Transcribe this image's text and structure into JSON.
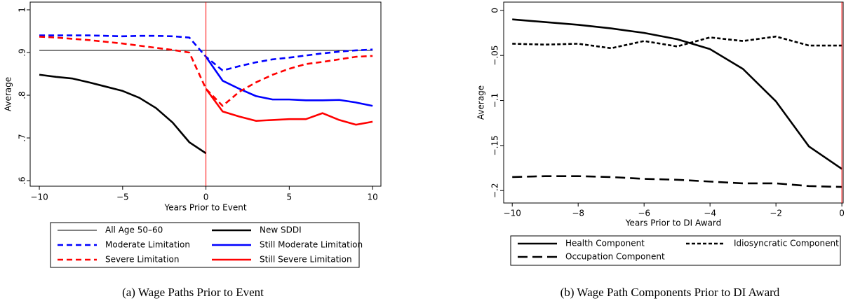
{
  "chart_data": [
    {
      "type": "line",
      "caption": "(a)  Wage Paths Prior to Event",
      "xlabel": "Years Prior to Event",
      "ylabel": "Average",
      "x": [
        -10,
        -9,
        -8,
        -7,
        -6,
        -5,
        -4,
        -3,
        -2,
        -1,
        0,
        1,
        2,
        3,
        4,
        5,
        6,
        7,
        8,
        9,
        10
      ],
      "xlim": [
        -10.55,
        10.5
      ],
      "xticks": [
        {
          "value": -10,
          "label": "−10"
        },
        {
          "value": -5,
          "label": "−5"
        },
        0,
        5,
        10
      ],
      "ylim": [
        0.587,
        1.018
      ],
      "yticks": [
        {
          "value": 0.6,
          "label": ".6"
        },
        {
          "value": 0.7,
          "label": ".7"
        },
        {
          "value": 0.8,
          "label": ".8"
        },
        {
          "value": 0.9,
          "label": ".9"
        },
        1
      ],
      "vline": 0,
      "vline_color": "#ff0000",
      "series": [
        {
          "name": "All Age 50–60",
          "color": "#000000",
          "style": "thin",
          "values": [
            0.905,
            0.905,
            0.905,
            0.905,
            0.905,
            0.905,
            0.905,
            0.905,
            0.905,
            0.905,
            0.905,
            0.905,
            0.905,
            0.905,
            0.905,
            0.905,
            0.905,
            0.905,
            0.905,
            0.905,
            0.905
          ]
        },
        {
          "name": "New SDDI",
          "color": "#000000",
          "style": "solid",
          "values": [
            0.848,
            0.843,
            0.839,
            0.83,
            0.82,
            0.81,
            0.794,
            0.77,
            0.736,
            0.69,
            0.664,
            null,
            null,
            null,
            null,
            null,
            null,
            null,
            null,
            null,
            null
          ]
        },
        {
          "name": "Moderate Limitation",
          "color": "#0000ff",
          "style": "dashed",
          "values": [
            0.94,
            0.94,
            0.94,
            0.94,
            0.939,
            0.938,
            0.939,
            0.939,
            0.938,
            0.935,
            0.89,
            0.858,
            0.868,
            0.877,
            0.884,
            0.888,
            0.893,
            0.898,
            0.902,
            0.905,
            0.907
          ]
        },
        {
          "name": "Still Moderate Limitation",
          "color": "#0000ff",
          "style": "solid",
          "values": [
            null,
            null,
            null,
            null,
            null,
            null,
            null,
            null,
            null,
            null,
            0.89,
            0.834,
            0.815,
            0.798,
            0.79,
            0.79,
            0.788,
            0.788,
            0.789,
            0.783,
            0.775
          ]
        },
        {
          "name": "Severe Limitation",
          "color": "#ff0000",
          "style": "dashed",
          "values": [
            0.937,
            0.935,
            0.932,
            0.929,
            0.925,
            0.921,
            0.916,
            0.911,
            0.906,
            0.9,
            0.815,
            0.775,
            0.808,
            0.83,
            0.848,
            0.862,
            0.873,
            0.878,
            0.884,
            0.89,
            0.892
          ]
        },
        {
          "name": "Still Severe Limitation",
          "color": "#ff0000",
          "style": "solid",
          "values": [
            null,
            null,
            null,
            null,
            null,
            null,
            null,
            null,
            null,
            null,
            0.815,
            0.762,
            0.75,
            0.74,
            0.742,
            0.744,
            0.744,
            0.758,
            0.742,
            0.731,
            0.738
          ]
        }
      ]
    },
    {
      "type": "line",
      "caption": "(b)  Wage Path Components Prior to DI Award",
      "xlabel": "Years Prior to DI Award",
      "ylabel": "Average",
      "x": [
        -10,
        -9,
        -8,
        -7,
        -6,
        -5,
        -4,
        -3,
        -2,
        -1,
        0
      ],
      "xlim": [
        -10.26,
        0.04
      ],
      "xticks": [
        {
          "value": -10,
          "label": "−10"
        },
        {
          "value": -8,
          "label": "−8"
        },
        {
          "value": -6,
          "label": "−6"
        },
        {
          "value": -4,
          "label": "−4"
        },
        {
          "value": -2,
          "label": "−2"
        },
        0
      ],
      "ylim": [
        -0.2138,
        0.0092
      ],
      "yticks": [
        {
          "value": -0.2,
          "label": "−.2"
        },
        {
          "value": -0.15,
          "label": "−.15"
        },
        {
          "value": -0.1,
          "label": "−.1"
        },
        {
          "value": -0.05,
          "label": "−.05"
        },
        0
      ],
      "vline": 0,
      "vline_color": "#ff0000",
      "series": [
        {
          "name": "Health Component",
          "color": "#000000",
          "style": "solid",
          "values": [
            -0.01,
            -0.013,
            -0.016,
            -0.02,
            -0.025,
            -0.032,
            -0.043,
            -0.065,
            -0.101,
            -0.151,
            -0.176
          ]
        },
        {
          "name": "Idiosyncratic Component",
          "color": "#000000",
          "style": "short-dashed",
          "values": [
            -0.037,
            -0.038,
            -0.037,
            -0.042,
            -0.034,
            -0.04,
            -0.03,
            -0.034,
            -0.029,
            -0.039,
            -0.039
          ]
        },
        {
          "name": "Occupation Component",
          "color": "#000000",
          "style": "long-dashed",
          "values": [
            -0.185,
            -0.184,
            -0.184,
            -0.185,
            -0.187,
            -0.188,
            -0.19,
            -0.192,
            -0.192,
            -0.195,
            -0.196
          ]
        }
      ]
    }
  ]
}
